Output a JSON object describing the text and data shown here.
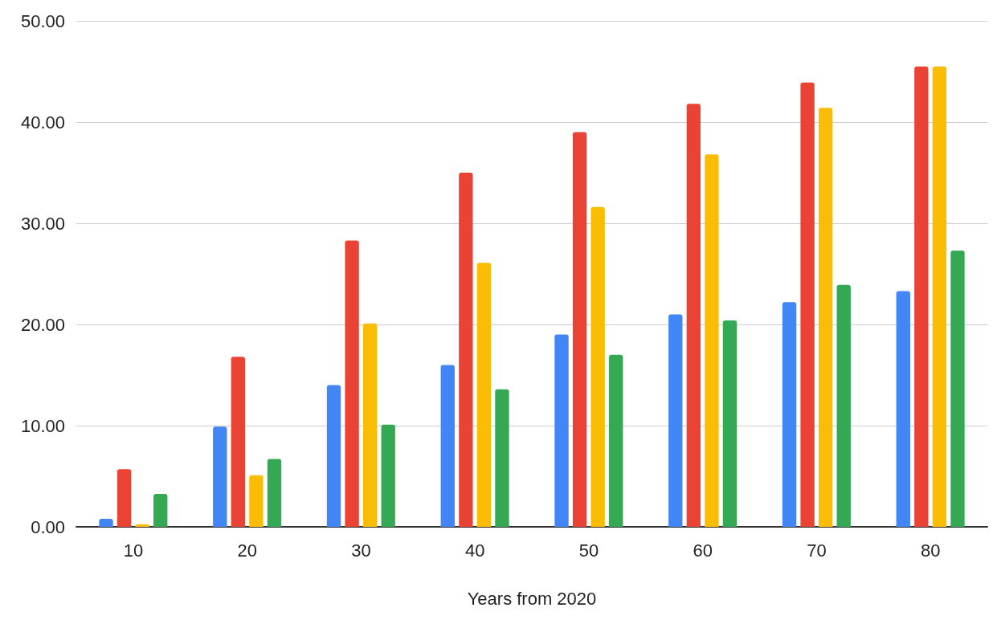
{
  "chart_data": {
    "type": "bar",
    "xlabel": "Years from 2020",
    "categories": [
      "10",
      "20",
      "30",
      "40",
      "50",
      "60",
      "70",
      "80"
    ],
    "series": [
      {
        "color": "#4285f4",
        "values": [
          0.8,
          9.9,
          14.0,
          16.0,
          19.0,
          21.0,
          22.2,
          23.3
        ]
      },
      {
        "color": "#ea4335",
        "values": [
          5.7,
          16.8,
          28.3,
          35.0,
          39.0,
          41.8,
          43.9,
          45.5
        ]
      },
      {
        "color": "#fbbc04",
        "values": [
          0.25,
          5.1,
          20.1,
          26.1,
          31.6,
          36.8,
          41.4,
          45.5
        ]
      },
      {
        "color": "#34a853",
        "values": [
          3.25,
          6.7,
          10.1,
          13.6,
          17.0,
          20.4,
          23.9,
          27.3
        ]
      }
    ],
    "ylim": [
      0,
      50
    ],
    "yticks": [
      {
        "value": 0,
        "label": "0.00"
      },
      {
        "value": 10,
        "label": "10.00"
      },
      {
        "value": 20,
        "label": "20.00"
      },
      {
        "value": 30,
        "label": "30.00"
      },
      {
        "value": 40,
        "label": "40.00"
      },
      {
        "value": 50,
        "label": "50.00"
      }
    ],
    "grid": "y"
  }
}
